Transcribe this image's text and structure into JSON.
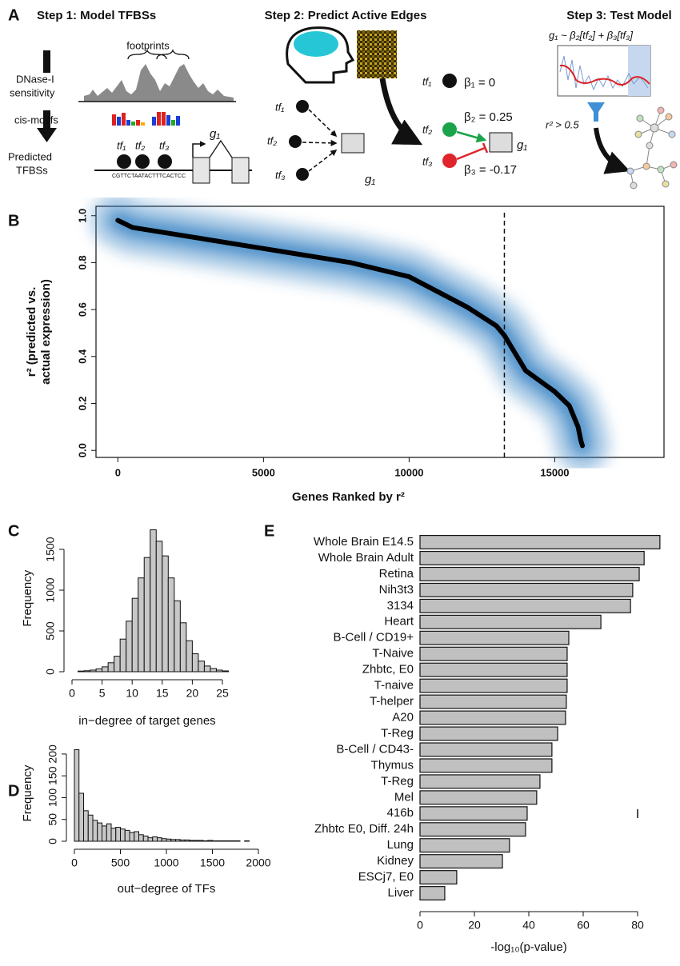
{
  "panel_a": {
    "label": "A",
    "step1": {
      "title": "Step 1: Model TFBSs",
      "footprints": "footprints",
      "dnase": [
        "DNase-I",
        "sensitivity"
      ],
      "cis_motifs": "cis-motifs",
      "predicted": [
        "Predicted",
        "TFBSs"
      ],
      "tfs": [
        "tf₁",
        "tf₂",
        "tf₃"
      ],
      "gene": "g₁",
      "sequence": "CGTTCTAATACTTTCACTCC"
    },
    "step2": {
      "title": "Step 2: Predict Active Edges",
      "inputs": [
        "tf₁",
        "tf₂",
        "tf₃"
      ],
      "gene": "g₁",
      "outputs": [
        "tf₁",
        "tf₂",
        "tf₃"
      ],
      "output_gene": "g₁",
      "betas": [
        "β₁ = 0",
        "β₂ = 0.25",
        "β₃ = -0.17"
      ]
    },
    "step3": {
      "title": "Step 3: Test Model",
      "formula": "g₁ ~ β₂[tf₂] + β₃[tf₃]",
      "threshold": "r² > 0.5"
    }
  },
  "chart_data": [
    {
      "type": "line",
      "label": "B",
      "xlabel": "Genes Ranked by r²",
      "ylabel": [
        "r² (predicted vs.",
        "actual expression)"
      ],
      "x": [
        0,
        500,
        2000,
        5000,
        8000,
        10000,
        12000,
        13000,
        13270,
        14000,
        15000,
        15500,
        15800,
        15900,
        15950
      ],
      "values": [
        0.98,
        0.95,
        0.92,
        0.86,
        0.8,
        0.74,
        0.61,
        0.53,
        0.49,
        0.34,
        0.25,
        0.19,
        0.1,
        0.04,
        0.02
      ],
      "color": "#000000",
      "density_color": "#2a7abf",
      "vline": 13270,
      "xlim": [
        -750,
        18750
      ],
      "ylim": [
        -0.03,
        1.04
      ],
      "xticks": [
        0,
        5000,
        10000,
        15000
      ],
      "yticks": [
        {
          "value": 0,
          "label": "0.0"
        },
        0.2,
        0.4,
        0.6,
        0.8,
        {
          "value": 1,
          "label": "1.0"
        }
      ]
    },
    {
      "type": "histogram",
      "label": "C",
      "xlabel": "in−degree of target genes",
      "ylabel": "Frequency",
      "bins": [
        1,
        2,
        3,
        4,
        5,
        6,
        7,
        8,
        9,
        10,
        11,
        12,
        13,
        14,
        15,
        16,
        17,
        18,
        19,
        20,
        21,
        22,
        23,
        24,
        25,
        26
      ],
      "counts": [
        8,
        12,
        20,
        35,
        60,
        110,
        190,
        400,
        620,
        900,
        1150,
        1400,
        1740,
        1600,
        1420,
        1150,
        870,
        600,
        380,
        220,
        130,
        70,
        40,
        20,
        10
      ],
      "color": "#c8c8c8",
      "xlim": [
        0,
        26
      ],
      "ylim": [
        0,
        1800
      ],
      "xticks": [
        0,
        5,
        10,
        15,
        20,
        25
      ],
      "yticks": [
        0,
        500,
        1000,
        1500
      ]
    },
    {
      "type": "histogram",
      "label": "D",
      "xlabel": "out−degree of TFs",
      "ylabel": "Frequency",
      "bins": [
        0,
        50,
        100,
        150,
        200,
        250,
        300,
        350,
        400,
        450,
        500,
        550,
        600,
        650,
        700,
        750,
        800,
        850,
        900,
        950,
        1000,
        1050,
        1100,
        1150,
        1200,
        1250,
        1300,
        1350,
        1400,
        1450,
        1500,
        1550,
        1600,
        1650,
        1700,
        1750,
        1800,
        1850,
        1900
      ],
      "counts": [
        210,
        110,
        70,
        60,
        48,
        42,
        35,
        40,
        30,
        32,
        28,
        25,
        20,
        22,
        15,
        12,
        8,
        10,
        8,
        6,
        5,
        4,
        4,
        3,
        3,
        2,
        2,
        2,
        1,
        2,
        1,
        1,
        1,
        1,
        1,
        1,
        0,
        1
      ],
      "color": "#c8c8c8",
      "xlim": [
        0,
        2000
      ],
      "ylim": [
        0,
        220
      ],
      "xticks": [
        0,
        500,
        1000,
        1500,
        2000
      ],
      "yticks": [
        0,
        50,
        100,
        150,
        200
      ]
    },
    {
      "type": "bar",
      "orientation": "horizontal",
      "label": "E",
      "xlabel": "-log₁₀(p-value)",
      "categories": [
        "Whole Brain E14.5",
        "Whole Brain Adult",
        "Retina",
        "Nih3t3",
        "3134",
        "Heart",
        "B-Cell / CD19+",
        "T-Naive",
        "Zhbtc, E0",
        "T-naive",
        "T-helper",
        "A20",
        "T-Reg",
        "B-Cell / CD43-",
        "Thymus",
        "T-Reg",
        "Mel",
        "416b",
        "Zhbtc E0, Diff. 24h",
        "Lung",
        "Kidney",
        "ESCj7, E0",
        "Liver"
      ],
      "values": [
        88.2,
        82.4,
        80.6,
        78.2,
        77.4,
        66.5,
        54.7,
        54.1,
        54.1,
        54.1,
        53.8,
        53.5,
        50.6,
        48.5,
        48.5,
        44.1,
        42.9,
        39.4,
        38.8,
        32.9,
        30.3,
        13.5,
        9.1
      ],
      "color": "#c0c0c0",
      "xlim": [
        0,
        90
      ],
      "xticks": [
        0,
        20,
        40,
        60,
        80
      ]
    }
  ]
}
